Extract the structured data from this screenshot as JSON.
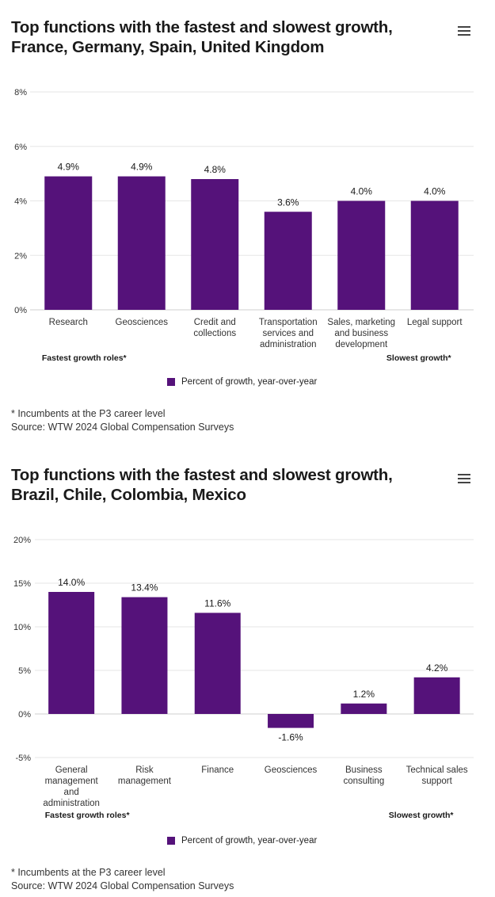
{
  "charts": [
    {
      "title_line1": "Top functions with the fastest and slowest growth,",
      "title_line2": "France, Germany, Spain, United Kingdom",
      "legend": "Percent of growth, year-over-year",
      "footnote": "* Incumbents at the P3 career level",
      "source": "Source: WTW 2024 Global Compensation Surveys",
      "fastest_label": "Fastest growth roles*",
      "slowest_label": "Slowest growth*"
    },
    {
      "title_line1": "Top functions with the fastest and slowest growth,",
      "title_line2": "Brazil, Chile, Colombia, Mexico",
      "legend": "Percent of growth, year-over-year",
      "footnote": "* Incumbents at the P3 career level",
      "source": "Source: WTW 2024 Global Compensation Surveys",
      "fastest_label": "Fastest growth roles*",
      "slowest_label": "Slowest growth*"
    }
  ],
  "chart_data": [
    {
      "type": "bar",
      "title": "Top functions with the fastest and slowest growth, France, Germany, Spain, United Kingdom",
      "categories": [
        [
          "Research"
        ],
        [
          "Geosciences"
        ],
        [
          "Credit and",
          "collections"
        ],
        [
          "Transportation",
          "services and",
          "administration"
        ],
        [
          "Sales, marketing",
          "and business",
          "development"
        ],
        [
          "Legal support"
        ]
      ],
      "values": [
        4.9,
        4.9,
        4.8,
        3.6,
        4.0,
        4.0
      ],
      "value_labels": [
        "4.9%",
        "4.9%",
        "4.8%",
        "3.6%",
        "4.0%",
        "4.0%"
      ],
      "yticks": [
        0,
        2,
        4,
        6,
        8
      ],
      "ytick_labels": [
        "0%",
        "2%",
        "4%",
        "6%",
        "8%"
      ],
      "ylim": [
        0,
        8
      ],
      "series_name": "Percent of growth, year-over-year",
      "color": "#55127a"
    },
    {
      "type": "bar",
      "title": "Top functions with the fastest and slowest growth, Brazil, Chile, Colombia, Mexico",
      "categories": [
        [
          "General",
          "management",
          "and",
          "administration"
        ],
        [
          "Risk",
          "management"
        ],
        [
          "Finance"
        ],
        [
          "Geosciences"
        ],
        [
          "Business",
          "consulting"
        ],
        [
          "Technical sales",
          "support"
        ]
      ],
      "values": [
        14.0,
        13.4,
        11.6,
        -1.6,
        1.2,
        4.2
      ],
      "value_labels": [
        "14.0%",
        "13.4%",
        "11.6%",
        "-1.6%",
        "1.2%",
        "4.2%"
      ],
      "yticks": [
        -5,
        0,
        5,
        10,
        15,
        20
      ],
      "ytick_labels": [
        "-5%",
        "0%",
        "5%",
        "10%",
        "15%",
        "20%"
      ],
      "ylim": [
        -5,
        20
      ],
      "series_name": "Percent of growth, year-over-year",
      "color": "#55127a"
    }
  ]
}
